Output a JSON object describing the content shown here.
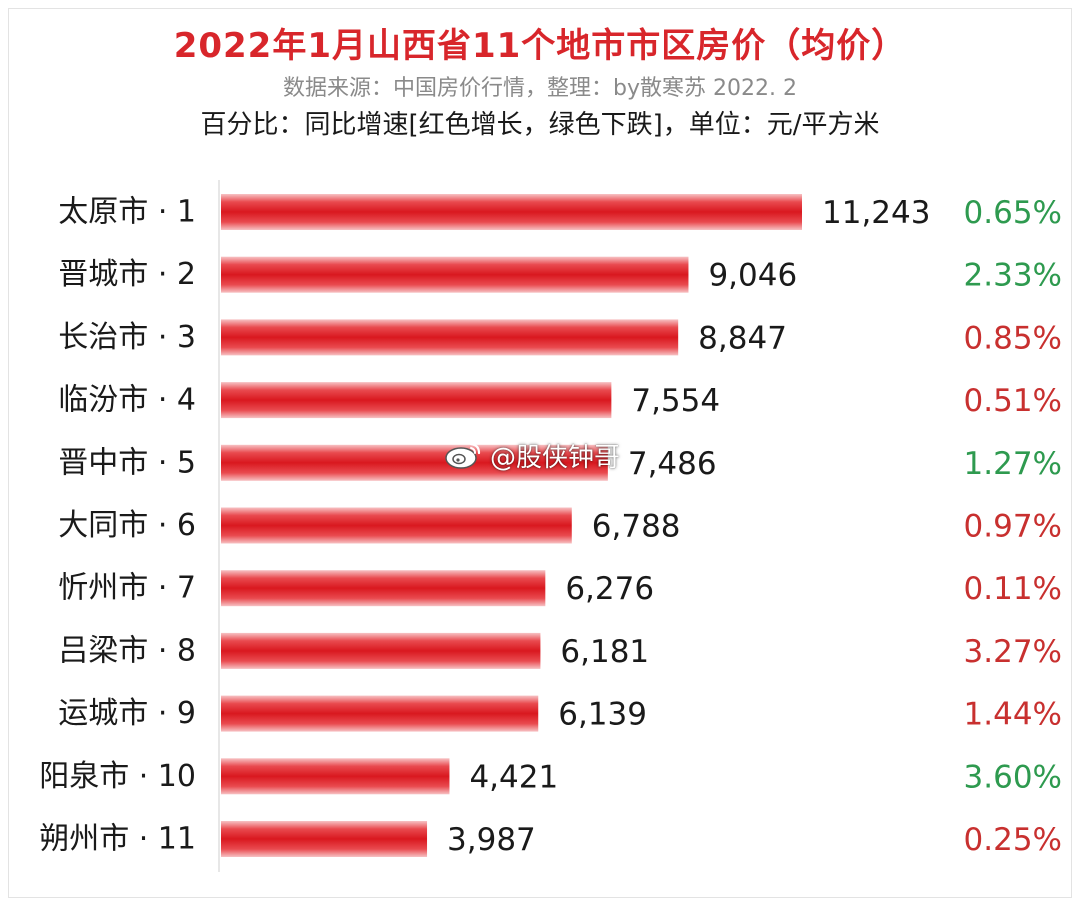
{
  "title": "2022年1月山西省11个地市市区房价（均价）",
  "source": "数据来源：中国房价行情，整理：by散寒苏 2022. 2",
  "subtitle": "百分比：同比增速[红色增长，绿色下跌]，单位：元/平方米",
  "watermark": "@股侠钟哥",
  "watermark_icon": "weibo-icon",
  "colors": {
    "title": "#d8262b",
    "bar": "#e3242b",
    "increase": "#c8302f",
    "decrease": "#2e9a4f"
  },
  "chart_data": {
    "type": "bar",
    "orientation": "horizontal",
    "title": "2022年1月山西省11个地市市区房价（均价）",
    "unit": "元/平方米",
    "categories": [
      "太原市 · 1",
      "晋城市 · 2",
      "长治市 · 3",
      "临汾市 · 4",
      "晋中市 · 5",
      "大同市 · 6",
      "忻州市 · 7",
      "吕梁市 · 8",
      "运城市 · 9",
      "阳泉市 · 10",
      "朔州市 · 11"
    ],
    "values": [
      11243,
      9046,
      8847,
      7554,
      7486,
      6788,
      6276,
      6181,
      6139,
      4421,
      3987
    ],
    "value_labels": [
      "11,243",
      "9,046",
      "8,847",
      "7,554",
      "7,486",
      "6,788",
      "6,276",
      "6,181",
      "6,139",
      "4,421",
      "3,987"
    ],
    "yoy_growth": [
      "0.65%",
      "2.33%",
      "0.85%",
      "0.51%",
      "1.27%",
      "0.97%",
      "0.11%",
      "3.27%",
      "1.44%",
      "3.60%",
      "0.25%"
    ],
    "yoy_direction": [
      "down",
      "down",
      "up",
      "up",
      "down",
      "up",
      "up",
      "up",
      "up",
      "down",
      "up"
    ],
    "xlim": [
      0,
      11243
    ],
    "grid": false
  }
}
